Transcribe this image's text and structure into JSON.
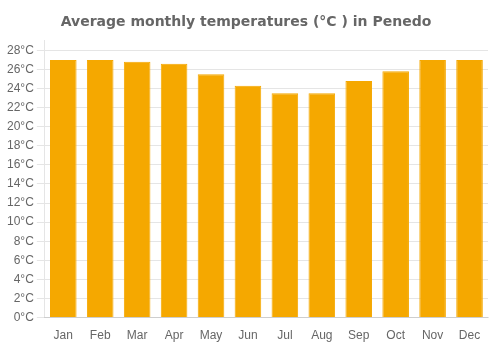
{
  "chart_data": {
    "type": "bar",
    "title": "Average monthly temperatures (°C ) in Penedo",
    "categories": [
      "Jan",
      "Feb",
      "Mar",
      "Apr",
      "May",
      "Jun",
      "Jul",
      "Aug",
      "Sep",
      "Oct",
      "Nov",
      "Dec"
    ],
    "values": [
      27.0,
      27.0,
      26.8,
      26.6,
      25.5,
      24.3,
      23.5,
      23.5,
      24.8,
      25.8,
      27.0,
      27.0
    ],
    "color": "#F5A800",
    "ylim": [
      0,
      29
    ],
    "yticks": [
      {
        "value": 0,
        "label": "0°C"
      },
      {
        "value": 2,
        "label": "2°C"
      },
      {
        "value": 4,
        "label": "4°C"
      },
      {
        "value": 6,
        "label": "6°C"
      },
      {
        "value": 8,
        "label": "8°C"
      },
      {
        "value": 10,
        "label": "10°C"
      },
      {
        "value": 12,
        "label": "12°C"
      },
      {
        "value": 14,
        "label": "14°C"
      },
      {
        "value": 16,
        "label": "16°C"
      },
      {
        "value": 18,
        "label": "18°C"
      },
      {
        "value": 20,
        "label": "20°C"
      },
      {
        "value": 22,
        "label": "22°C"
      },
      {
        "value": 24,
        "label": "24°C"
      },
      {
        "value": 26,
        "label": "26°C"
      },
      {
        "value": 28,
        "label": "28°C"
      }
    ],
    "grid": true
  }
}
